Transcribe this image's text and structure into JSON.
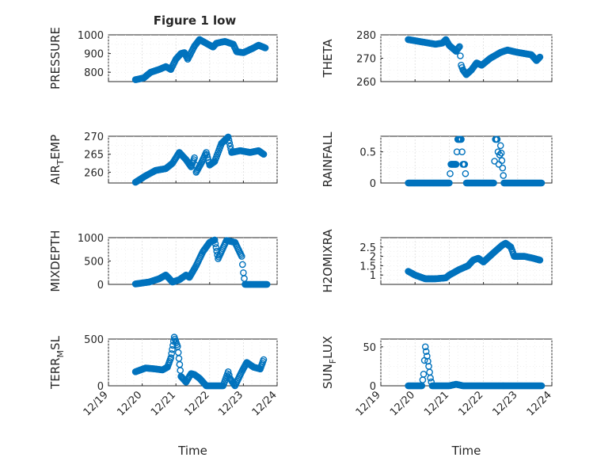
{
  "figure_title": "Figure 1 low",
  "chart_data": [
    {
      "type": "scatter",
      "ylabel": "PRESSURE",
      "ylim": [
        750,
        1000
      ],
      "yticks": [
        800,
        900,
        1000
      ],
      "grid": true,
      "minor_grid": true,
      "segments": [
        [
          19.8,
          760
        ],
        [
          20.05,
          770
        ],
        [
          20.25,
          800
        ],
        [
          20.5,
          815
        ],
        [
          20.7,
          830
        ],
        [
          20.85,
          815
        ],
        [
          21.0,
          870
        ],
        [
          21.15,
          900
        ],
        [
          21.25,
          905
        ],
        [
          21.35,
          870
        ],
        [
          21.55,
          940
        ],
        [
          21.7,
          975
        ],
        [
          21.95,
          950
        ],
        [
          22.1,
          935
        ],
        [
          22.2,
          955
        ],
        [
          22.45,
          965
        ],
        [
          22.7,
          950
        ],
        [
          22.8,
          910
        ],
        [
          23.0,
          905
        ],
        [
          23.3,
          930
        ],
        [
          23.45,
          945
        ],
        [
          23.65,
          930
        ]
      ]
    },
    {
      "type": "scatter",
      "ylabel": "THETA",
      "ylim": [
        260,
        280
      ],
      "yticks": [
        260,
        270,
        280
      ],
      "grid": true,
      "minor_grid": true,
      "segments": [
        [
          19.8,
          278
        ],
        [
          20.2,
          277
        ],
        [
          20.6,
          276
        ],
        [
          20.8,
          276.5
        ],
        [
          20.9,
          278
        ],
        [
          21.0,
          275.5
        ],
        [
          21.2,
          273
        ],
        [
          21.3,
          275
        ],
        [
          21.35,
          267
        ],
        [
          21.4,
          265
        ],
        [
          21.5,
          263
        ],
        [
          21.65,
          265
        ],
        [
          21.8,
          268
        ],
        [
          21.95,
          267
        ],
        [
          22.2,
          270
        ],
        [
          22.5,
          272.5
        ],
        [
          22.7,
          273.5
        ],
        [
          23.0,
          272.5
        ],
        [
          23.4,
          271.5
        ],
        [
          23.55,
          269
        ],
        [
          23.65,
          270.5
        ]
      ]
    },
    {
      "type": "scatter",
      "ylabel": "AIR_TEMP",
      "ylim": [
        257,
        270
      ],
      "yticks": [
        260,
        265,
        270
      ],
      "grid": true,
      "minor_grid": true,
      "segments": [
        [
          19.8,
          257.2
        ],
        [
          20.1,
          259
        ],
        [
          20.4,
          260.5
        ],
        [
          20.7,
          261
        ],
        [
          20.9,
          262.5
        ],
        [
          21.1,
          265.5
        ],
        [
          21.3,
          263.5
        ],
        [
          21.45,
          261.5
        ],
        [
          21.55,
          264
        ],
        [
          21.6,
          260
        ],
        [
          21.75,
          262.5
        ],
        [
          21.9,
          265.5
        ],
        [
          22.0,
          262
        ],
        [
          22.15,
          263
        ],
        [
          22.35,
          268
        ],
        [
          22.55,
          269.8
        ],
        [
          22.65,
          265.5
        ],
        [
          22.9,
          266
        ],
        [
          23.2,
          265.5
        ],
        [
          23.45,
          266
        ],
        [
          23.6,
          265
        ]
      ]
    },
    {
      "type": "scatter",
      "ylabel": "RAINFALL",
      "ylim": [
        0,
        0.75
      ],
      "yticks": [
        0,
        0.5
      ],
      "grid": true,
      "minor_grid": true,
      "segments": [
        [
          19.8,
          0
        ],
        [
          21.0,
          0
        ],
        [
          21.05,
          0.3
        ],
        [
          21.2,
          0.3
        ],
        [
          21.25,
          0.7
        ],
        [
          21.35,
          0.7
        ],
        [
          21.4,
          0.3
        ],
        [
          21.45,
          0.3
        ],
        [
          21.5,
          0
        ],
        [
          22.3,
          0
        ],
        [
          22.35,
          0.7
        ],
        [
          22.4,
          0.7
        ],
        [
          22.45,
          0.3
        ],
        [
          22.5,
          0.6
        ],
        [
          22.6,
          0
        ],
        [
          23.7,
          0
        ]
      ]
    },
    {
      "type": "scatter",
      "ylabel": "MIXDEPTH",
      "ylim": [
        0,
        1000
      ],
      "yticks": [
        0,
        500,
        1000
      ],
      "grid": true,
      "minor_grid": true,
      "segments": [
        [
          19.8,
          10
        ],
        [
          20.2,
          50
        ],
        [
          20.5,
          120
        ],
        [
          20.7,
          200
        ],
        [
          20.9,
          50
        ],
        [
          21.1,
          100
        ],
        [
          21.3,
          200
        ],
        [
          21.4,
          150
        ],
        [
          21.6,
          400
        ],
        [
          21.8,
          700
        ],
        [
          22.0,
          900
        ],
        [
          22.15,
          950
        ],
        [
          22.25,
          550
        ],
        [
          22.5,
          940
        ],
        [
          22.75,
          900
        ],
        [
          22.95,
          600
        ],
        [
          23.0,
          250
        ],
        [
          23.05,
          0
        ],
        [
          23.7,
          0
        ]
      ]
    },
    {
      "type": "scatter",
      "ylabel": "H2OMIXRA",
      "ylim": [
        0.5,
        3
      ],
      "yticks": [
        1,
        1.5,
        2,
        2.5
      ],
      "grid": true,
      "minor_grid": true,
      "segments": [
        [
          19.8,
          1.2
        ],
        [
          20.0,
          1.0
        ],
        [
          20.3,
          0.8
        ],
        [
          20.6,
          0.8
        ],
        [
          20.9,
          0.85
        ],
        [
          21.0,
          1.0
        ],
        [
          21.3,
          1.3
        ],
        [
          21.55,
          1.5
        ],
        [
          21.7,
          1.8
        ],
        [
          21.85,
          1.9
        ],
        [
          22.0,
          1.7
        ],
        [
          22.3,
          2.2
        ],
        [
          22.55,
          2.6
        ],
        [
          22.65,
          2.7
        ],
        [
          22.8,
          2.5
        ],
        [
          22.9,
          2.0
        ],
        [
          23.2,
          2.0
        ],
        [
          23.45,
          1.9
        ],
        [
          23.65,
          1.8
        ]
      ]
    },
    {
      "type": "scatter",
      "ylabel": "TERR_MSL",
      "ylim": [
        0,
        500
      ],
      "yticks": [
        0,
        500
      ],
      "grid": true,
      "minor_grid": true,
      "segments": [
        [
          19.8,
          150
        ],
        [
          20.1,
          190
        ],
        [
          20.4,
          180
        ],
        [
          20.6,
          170
        ],
        [
          20.75,
          200
        ],
        [
          20.85,
          300
        ],
        [
          20.95,
          520
        ],
        [
          21.05,
          420
        ],
        [
          21.15,
          100
        ],
        [
          21.3,
          40
        ],
        [
          21.45,
          130
        ],
        [
          21.55,
          120
        ],
        [
          21.7,
          80
        ],
        [
          21.9,
          0
        ],
        [
          22.4,
          0
        ],
        [
          22.55,
          150
        ],
        [
          22.6,
          80
        ],
        [
          22.75,
          0
        ],
        [
          22.95,
          150
        ],
        [
          23.1,
          250
        ],
        [
          23.3,
          200
        ],
        [
          23.5,
          180
        ],
        [
          23.6,
          280
        ]
      ]
    },
    {
      "type": "scatter",
      "ylabel": "SUN_FLUX",
      "ylim": [
        0,
        60
      ],
      "yticks": [
        0,
        50
      ],
      "grid": true,
      "minor_grid": true,
      "segments": [
        [
          19.8,
          0
        ],
        [
          20.2,
          0
        ],
        [
          20.25,
          15
        ],
        [
          20.3,
          50
        ],
        [
          20.35,
          38
        ],
        [
          20.4,
          25
        ],
        [
          20.45,
          10
        ],
        [
          20.5,
          0
        ],
        [
          21.0,
          0
        ],
        [
          21.2,
          2
        ],
        [
          21.4,
          0
        ],
        [
          23.7,
          0
        ]
      ]
    }
  ],
  "xaxis": {
    "label": "Time",
    "range": [
      19,
      24
    ],
    "ticks": [
      19,
      20,
      21,
      22,
      23,
      24
    ],
    "ticklabels": [
      "12/19",
      "12/20",
      "12/21",
      "12/22",
      "12/23",
      "12/24"
    ]
  },
  "colors": {
    "marker": "#0072bd",
    "axis": "#262626",
    "grid": "#dcdcdc"
  }
}
